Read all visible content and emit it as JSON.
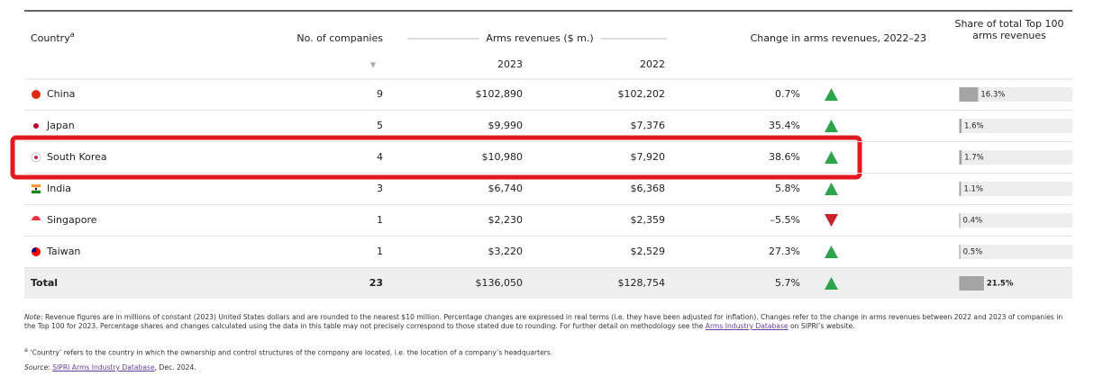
{
  "header": {
    "country": "Country",
    "country_note": "a",
    "companies": "No. of companies",
    "revenues": "Arms revenues ($ m.)",
    "year_a": "2023",
    "year_b": "2022",
    "change": "Change in arms revenues, 2022–23",
    "share": "Share of total Top 100 arms revenues"
  },
  "table": {
    "rows": [
      {
        "country": "China",
        "companies": 9,
        "rev2023": "$102,890",
        "rev2022": "$102,202",
        "change": {
          "value": 0.7,
          "label": "0.7%"
        },
        "share": {
          "value": 16.3,
          "label": "16.3%"
        }
      },
      {
        "country": "Japan",
        "companies": 5,
        "rev2023": "$9,990",
        "rev2022": "$7,376",
        "change": {
          "value": 35.4,
          "label": "35.4%"
        },
        "share": {
          "value": 1.6,
          "label": "1.6%"
        }
      },
      {
        "country": "South Korea",
        "companies": 4,
        "rev2023": "$10,980",
        "rev2022": "$7,920",
        "change": {
          "value": 38.6,
          "label": "38.6%"
        },
        "share": {
          "value": 1.7,
          "label": "1.7%"
        }
      },
      {
        "country": "India",
        "companies": 3,
        "rev2023": "$6,740",
        "rev2022": "$6,368",
        "change": {
          "value": 5.8,
          "label": "5.8%"
        },
        "share": {
          "value": 1.1,
          "label": "1.1%"
        }
      },
      {
        "country": "Singapore",
        "companies": 1,
        "rev2023": "$2,230",
        "rev2022": "$2,359",
        "change": {
          "value": -5.5,
          "label": "–5.5%"
        },
        "share": {
          "value": 0.4,
          "label": "0.4%"
        }
      },
      {
        "country": "Taiwan",
        "companies": 1,
        "rev2023": "$3,220",
        "rev2022": "$2,529",
        "change": {
          "value": 27.3,
          "label": "27.3%"
        },
        "share": {
          "value": 0.5,
          "label": "0.5%"
        }
      }
    ],
    "total": {
      "country": "Total",
      "companies": 23,
      "rev2023": "$136,050",
      "rev2022": "$128,754",
      "change": {
        "value": 5.7,
        "label": "5.7%"
      },
      "share": {
        "value": 21.5,
        "label": "21.5%"
      }
    }
  },
  "notes": {
    "note": {
      "label": "Note",
      "text": ": Revenue figures are in millions of constant (2023) United States dollars and are rounded to the nearest $10 million. Percentage changes are expressed in real terms (i.e. they have been adjusted for inflation). Changes refer to the change in arms revenues between 2022 and 2023 of companies in the Top 100 for 2023. Percentage shares and changes calculated using the data in this table may not precisely correspond to those stated due to rounding. For further detail on methodology see the ",
      "link": "Arms Industry Database",
      "tail": " on SIPRI’s website."
    },
    "footnote": {
      "mark": "a",
      "text": " ‘Country’ refers to the country in which the ownership and control structures of the company are located, i.e. the location of a company’s headquarters."
    },
    "source": {
      "label": "Source",
      "text": ": ",
      "link": "SIPRI Arms Industry Database",
      "tail": ", Dec. 2024."
    }
  }
}
